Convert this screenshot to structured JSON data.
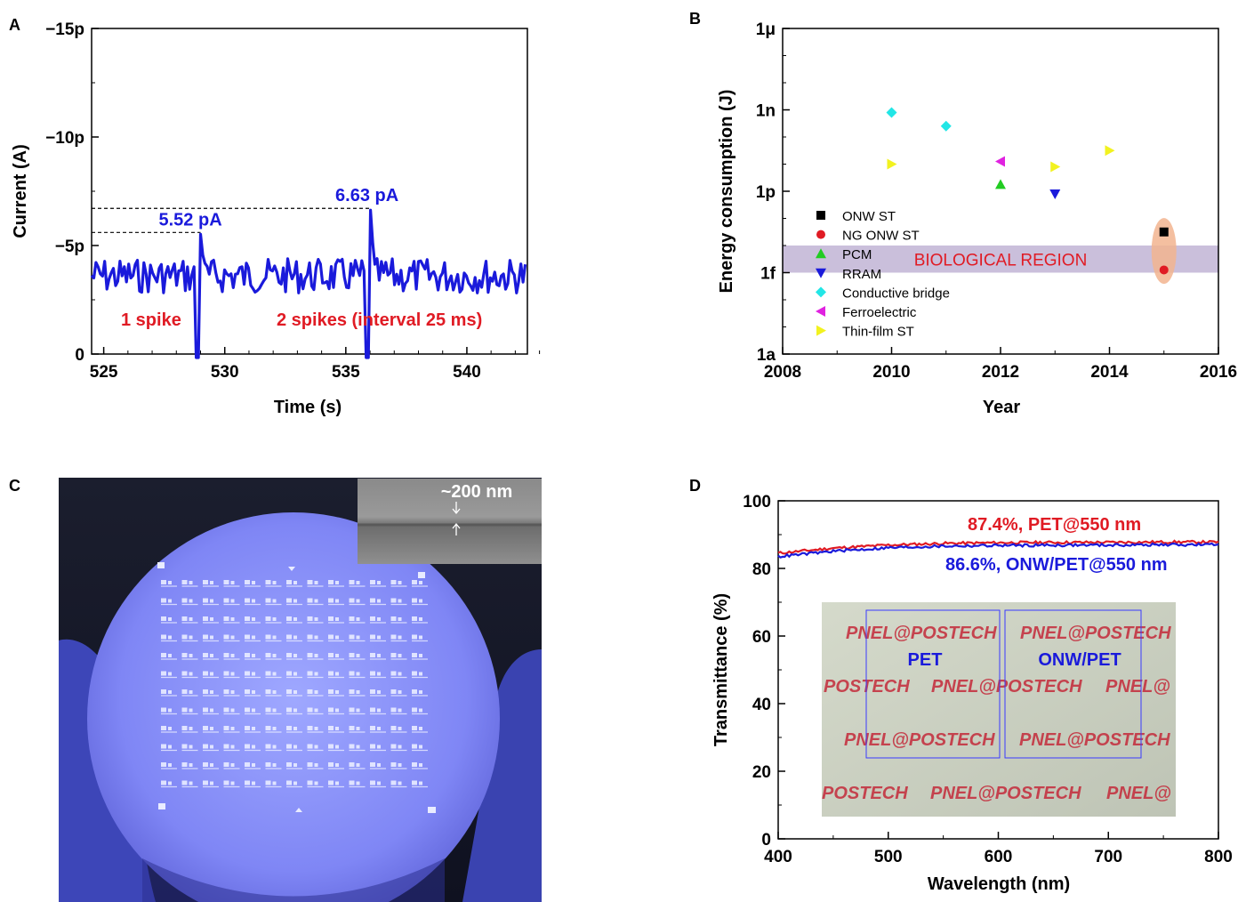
{
  "panels": {
    "A": {
      "label": "A"
    },
    "B": {
      "label": "B"
    },
    "C": {
      "label": "C",
      "scale_text": "~200 nm"
    },
    "D": {
      "label": "D"
    }
  },
  "chart_data": [
    {
      "id": "A",
      "type": "line",
      "xlabel": "Time (s)",
      "ylabel": "Current (A)",
      "xlim": [
        524.5,
        542.5
      ],
      "ylim": [
        0,
        -15
      ],
      "xticks": [
        525,
        530,
        535,
        540
      ],
      "yticks": [
        {
          "v": 0,
          "label": "0"
        },
        {
          "v": -5,
          "label": "-5p"
        },
        {
          "v": -10,
          "label": "-10p"
        },
        {
          "v": -15,
          "label": "-15p"
        }
      ],
      "color": "#1a1adb",
      "baseline": -3.6,
      "spikes": [
        {
          "x": 529.0,
          "peak": -5.52,
          "label": "5.52 pA"
        },
        {
          "x": 536.0,
          "peak": -6.63,
          "label": "6.63 pA"
        }
      ],
      "annotations": [
        {
          "text": "1 spike",
          "color": "#e01b24"
        },
        {
          "text": "2 spikes (interval 25 ms)",
          "color": "#e01b24"
        }
      ]
    },
    {
      "id": "B",
      "type": "scatter",
      "xlabel": "Year",
      "ylabel": "Energy consumption (J)",
      "xlim": [
        2008,
        2016
      ],
      "xticks": [
        2008,
        2010,
        2012,
        2014,
        2016
      ],
      "yscale": "log",
      "ylim_exp": [
        -18,
        -6
      ],
      "yticks": [
        {
          "e": -18,
          "label": "1a"
        },
        {
          "e": -15,
          "label": "1f"
        },
        {
          "e": -12,
          "label": "1p"
        },
        {
          "e": -9,
          "label": "1n"
        },
        {
          "e": -6,
          "label": "1μ"
        }
      ],
      "band": {
        "e_low": -15,
        "e_high": -14,
        "label": "BIOLOGICAL REGION",
        "color": "#b8a9cf",
        "text_color": "#e01b24"
      },
      "highlight": {
        "year": 2015,
        "color": "#f2b48f"
      },
      "series": [
        {
          "name": "ONW ST",
          "marker": "square",
          "color": "#000000",
          "points": [
            [
              2015,
              -13.5
            ]
          ]
        },
        {
          "name": "NG ONW ST",
          "marker": "circle",
          "color": "#e01b24",
          "points": [
            [
              2015,
              -14.9
            ]
          ]
        },
        {
          "name": "PCM",
          "marker": "triangle-up",
          "color": "#22cc22",
          "points": [
            [
              2012,
              -11.75
            ]
          ]
        },
        {
          "name": "RRAM",
          "marker": "triangle-down",
          "color": "#1a1adb",
          "points": [
            [
              2013,
              -12.1
            ]
          ]
        },
        {
          "name": "Conductive bridge",
          "marker": "diamond",
          "color": "#22e6e6",
          "points": [
            [
              2010,
              -9.1
            ],
            [
              2011,
              -9.6
            ]
          ]
        },
        {
          "name": "Ferroelectric",
          "marker": "triangle-left",
          "color": "#e022e0",
          "points": [
            [
              2012,
              -10.9
            ]
          ]
        },
        {
          "name": "Thin-film ST",
          "marker": "triangle-right",
          "color": "#f2f21f",
          "points": [
            [
              2010,
              -11.0
            ],
            [
              2013,
              -11.1
            ],
            [
              2014,
              -10.5
            ]
          ]
        }
      ]
    },
    {
      "id": "D",
      "type": "line",
      "xlabel": "Wavelength (nm)",
      "ylabel": "Transmittance (%)",
      "xlim": [
        400,
        800
      ],
      "ylim": [
        0,
        100
      ],
      "xticks": [
        400,
        500,
        600,
        700,
        800
      ],
      "yticks": [
        0,
        20,
        40,
        60,
        80,
        100
      ],
      "series": [
        {
          "name": "PET",
          "color": "#e01b24",
          "x": [
            400,
            450,
            500,
            550,
            600,
            650,
            700,
            750,
            800
          ],
          "y": [
            84.5,
            86.0,
            86.9,
            87.4,
            87.6,
            87.7,
            87.7,
            87.8,
            87.8
          ]
        },
        {
          "name": "ONW/PET",
          "color": "#1a1adb",
          "x": [
            400,
            450,
            500,
            550,
            600,
            650,
            700,
            750,
            800
          ],
          "y": [
            83.5,
            85.1,
            86.1,
            86.6,
            86.8,
            86.9,
            86.9,
            87.0,
            87.0
          ]
        }
      ],
      "annotations": [
        {
          "text": "87.4%, PET@550 nm",
          "color": "#e01b24"
        },
        {
          "text": "86.6%, ONW/PET@550 nm",
          "color": "#1a1adb"
        }
      ],
      "inset": {
        "watermark": "PNEL@POSTECH",
        "fragment_left": "POSTECH",
        "fragment_right": "PNEL@",
        "labels": [
          "PET",
          "ONW/PET"
        ]
      }
    }
  ]
}
